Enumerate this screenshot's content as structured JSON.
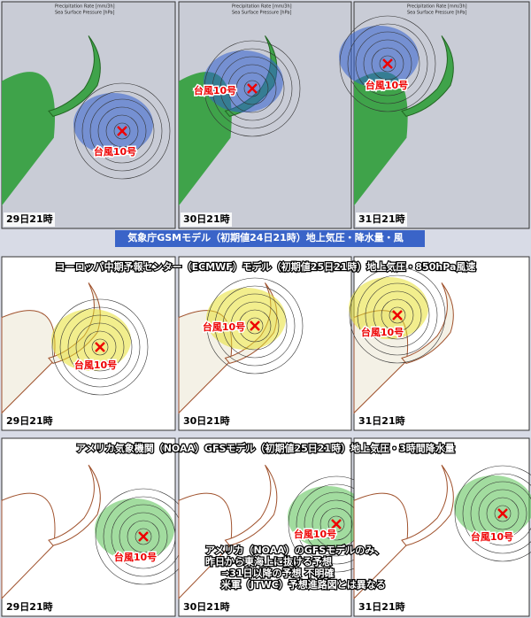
{
  "header": [
    "Precipitation Rate [mm/3h]",
    "Sea Surface Pressure [hPa]"
  ],
  "rows": [
    {
      "caption": "気象庁GSMモデル（初期値24日21時）地上気圧・降水量・風",
      "panels": [
        {
          "time": "29日21時",
          "typhoon": "台風10号"
        },
        {
          "time": "30日21時",
          "typhoon": "台風10号"
        },
        {
          "time": "31日21時",
          "typhoon": "台風10号"
        }
      ]
    },
    {
      "caption": "ヨーロッパ中期予報センター（ECMWF）モデル（初期値25日21時）地上気圧・850hPa風速",
      "panels": [
        {
          "time": "29日21時",
          "typhoon": "台風10号"
        },
        {
          "time": "30日21時",
          "typhoon": "台風10号"
        },
        {
          "time": "31日21時",
          "typhoon": "台風10号"
        }
      ]
    },
    {
      "caption": "アメリカ気象機関（NOAA）GFSモデル（初期値25日21時）地上気圧・3時間降水量",
      "panels": [
        {
          "time": "29日21時",
          "typhoon": "台風10号"
        },
        {
          "time": "30日21時",
          "typhoon": "台風10号"
        },
        {
          "time": "31日21時",
          "typhoon": "台風10号"
        }
      ]
    }
  ],
  "note": [
    "アメリカ（NOAA）のGFSモデルのみ、",
    "昨日から東海上に抜ける予想",
    "⇒31日以降の予想 不明確",
    "米軍（JTWC）予想進路図とは異なる"
  ]
}
